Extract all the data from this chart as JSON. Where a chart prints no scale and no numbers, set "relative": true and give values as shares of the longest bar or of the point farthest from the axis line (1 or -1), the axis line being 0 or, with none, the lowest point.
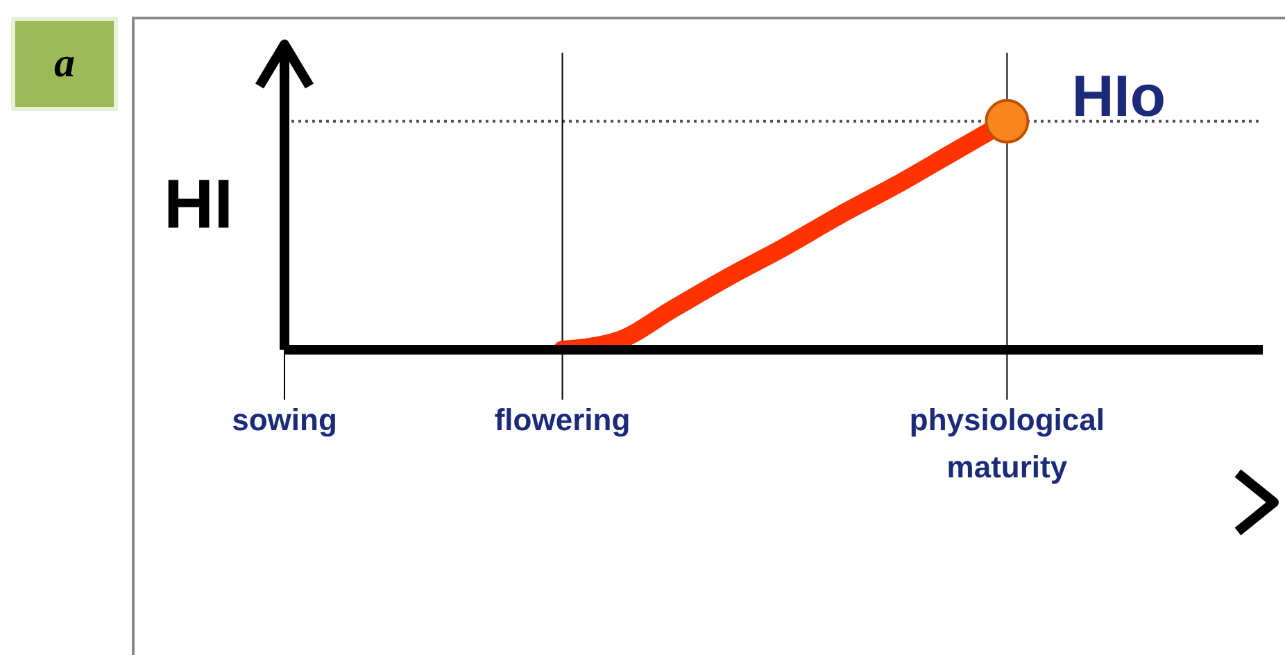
{
  "chart_data": {
    "type": "line",
    "relative": true,
    "ylabel": "HI",
    "annotations": [
      "a"
    ],
    "categories": [
      "sowing",
      null,
      null,
      null,
      null,
      "flowering",
      null,
      null,
      null,
      null,
      null,
      null,
      null,
      "physiological maturity"
    ],
    "series": [
      {
        "color": "#ff3300",
        "values": [
          null,
          null,
          null,
          null,
          null,
          0,
          0.04,
          0.18,
          0.32,
          0.45,
          0.59,
          0.72,
          0.86,
          1
        ]
      },
      {
        "type": "scatter",
        "color": "#f7861f",
        "values": [
          null,
          null,
          null,
          null,
          null,
          null,
          null,
          null,
          null,
          null,
          null,
          null,
          null,
          1
        ]
      }
    ],
    "ref_lines": [
      {
        "axis": "y",
        "value": 1,
        "label": "HIo",
        "line_style": "dotted",
        "color": "#555555"
      },
      {
        "axis": "x",
        "value": "flowering",
        "color": "#000000"
      },
      {
        "axis": "x",
        "value": "physiological maturity",
        "color": "#000000"
      }
    ]
  }
}
